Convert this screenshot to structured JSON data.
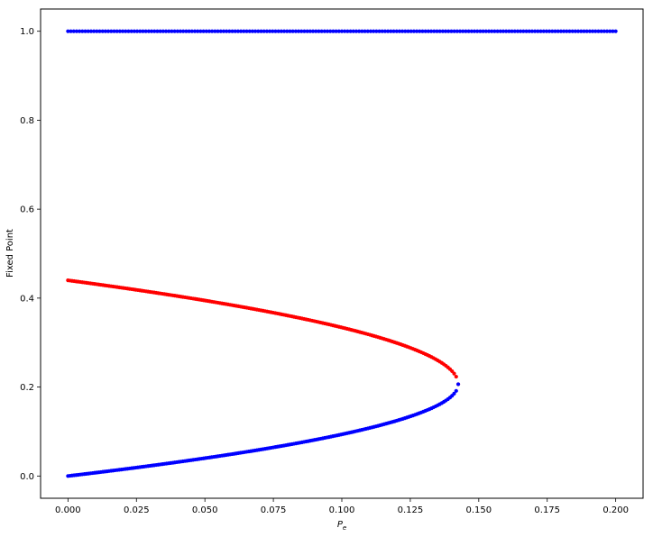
{
  "chart_data": {
    "type": "scatter",
    "title": "",
    "xlabel_main": "P",
    "xlabel_sub": "e",
    "ylabel": "Fixed Point",
    "xlim": [
      -0.01,
      0.21
    ],
    "ylim": [
      -0.05,
      1.05
    ],
    "x_ticks": [
      0.0,
      0.025,
      0.05,
      0.075,
      0.1,
      0.125,
      0.15,
      0.175,
      0.2
    ],
    "x_tick_labels": [
      "0.000",
      "0.025",
      "0.050",
      "0.075",
      "0.100",
      "0.125",
      "0.150",
      "0.175",
      "0.200"
    ],
    "y_ticks": [
      0.0,
      0.2,
      0.4,
      0.6,
      0.8,
      1.0
    ],
    "y_tick_labels": [
      "0.0",
      "0.2",
      "0.4",
      "0.6",
      "0.8",
      "1.0"
    ],
    "grid": false,
    "legend": "none",
    "pe_max": 0.2,
    "fold_pe": 0.1425,
    "fold_center": 0.2064,
    "branch_samples": 191,
    "series": [
      {
        "color": "#0000ff",
        "x": [
          0.0,
          0.2
        ],
        "y": [
          1.0,
          1.0
        ]
      },
      {
        "color": "#ff0000",
        "x": [
          0.0,
          0.1425
        ],
        "y": [
          0.44,
          0.2064
        ]
      },
      {
        "color": "#0000ff",
        "x": [
          0.0,
          0.1425
        ],
        "y": [
          0.0,
          0.2064
        ]
      }
    ]
  }
}
